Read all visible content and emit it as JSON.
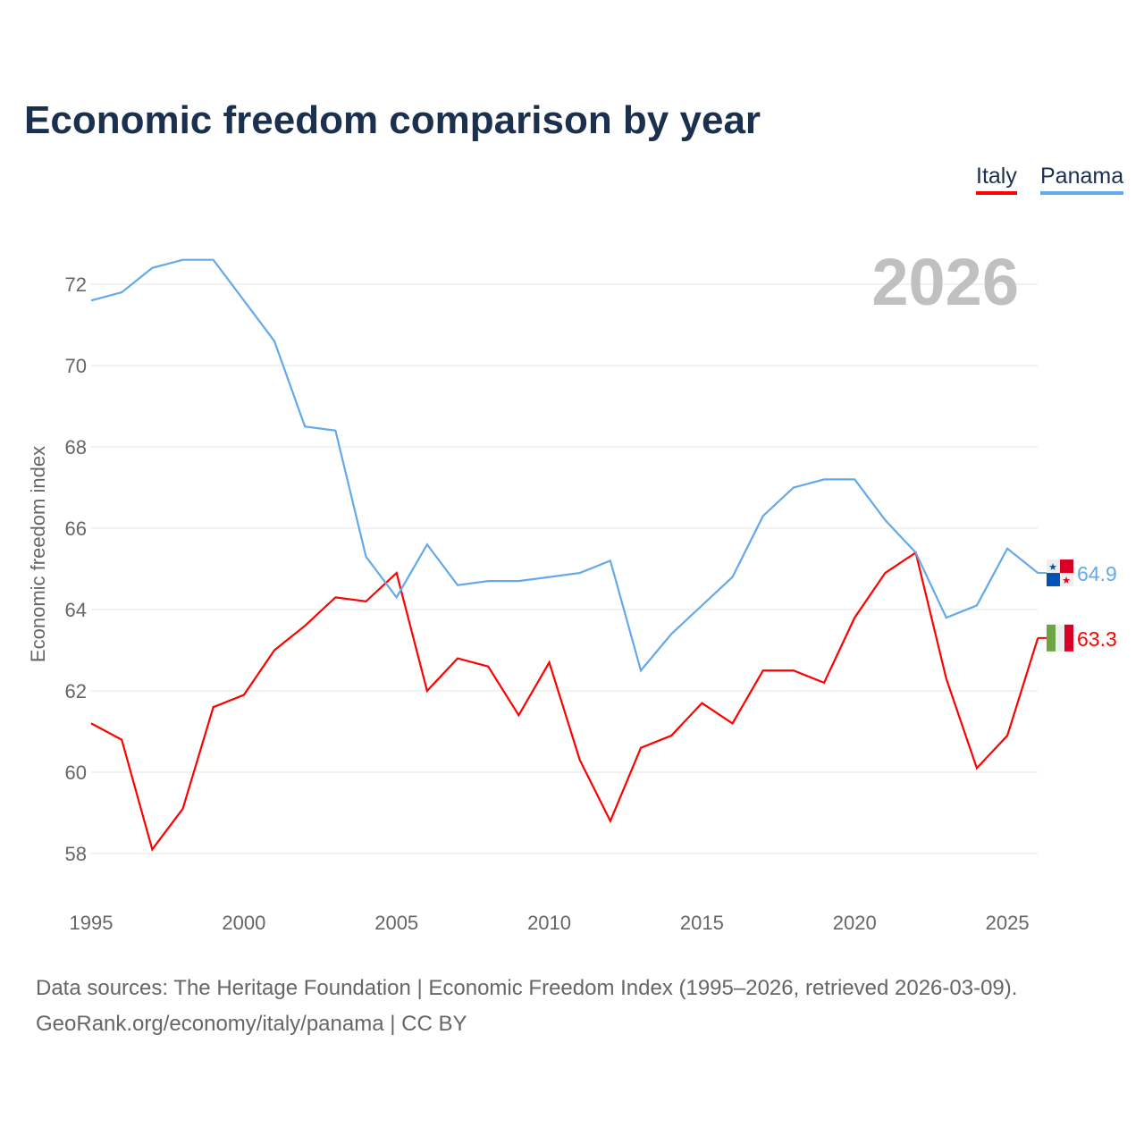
{
  "chart_data": {
    "type": "line",
    "title": "Economic freedom comparison by year",
    "ylabel": "Economic freedom index",
    "xlabel": "",
    "ylim": [
      57,
      73
    ],
    "xlim": [
      1995,
      2026
    ],
    "yticks": [
      58,
      60,
      62,
      64,
      66,
      68,
      70,
      72
    ],
    "xticks": [
      1995,
      2000,
      2005,
      2010,
      2015,
      2020,
      2025
    ],
    "grid": true,
    "legend_position": "top-right",
    "year_label": "2026",
    "x": [
      1995,
      1996,
      1997,
      1998,
      1999,
      2000,
      2001,
      2002,
      2003,
      2004,
      2005,
      2006,
      2007,
      2008,
      2009,
      2010,
      2011,
      2012,
      2013,
      2014,
      2015,
      2016,
      2017,
      2018,
      2019,
      2020,
      2021,
      2022,
      2023,
      2024,
      2025,
      2026
    ],
    "series": [
      {
        "name": "Italy",
        "color": "#ff0000",
        "end_label": "63.3",
        "values": [
          61.2,
          60.8,
          58.1,
          59.1,
          61.6,
          61.9,
          63.0,
          63.6,
          64.3,
          64.2,
          64.9,
          62.0,
          62.8,
          62.6,
          61.4,
          62.7,
          60.3,
          58.8,
          60.6,
          60.9,
          61.7,
          61.2,
          62.5,
          62.5,
          62.2,
          63.8,
          64.9,
          65.4,
          62.3,
          60.1,
          60.9,
          63.3
        ]
      },
      {
        "name": "Panama",
        "color": "#64a9ea",
        "end_label": "64.9",
        "values": [
          71.6,
          71.8,
          72.4,
          72.6,
          72.6,
          71.6,
          70.6,
          68.5,
          68.4,
          65.3,
          64.3,
          65.6,
          64.6,
          64.7,
          64.7,
          64.8,
          64.9,
          65.2,
          62.5,
          63.4,
          64.1,
          64.8,
          66.3,
          67.0,
          67.2,
          67.2,
          66.2,
          65.4,
          63.8,
          64.1,
          65.5,
          64.9
        ]
      }
    ]
  },
  "footer": {
    "line1": "Data sources: The Heritage Foundation | Economic Freedom Index (1995–2026, retrieved 2026-03-09).",
    "line2": "GeoRank.org/economy/italy/panama | CC BY"
  }
}
